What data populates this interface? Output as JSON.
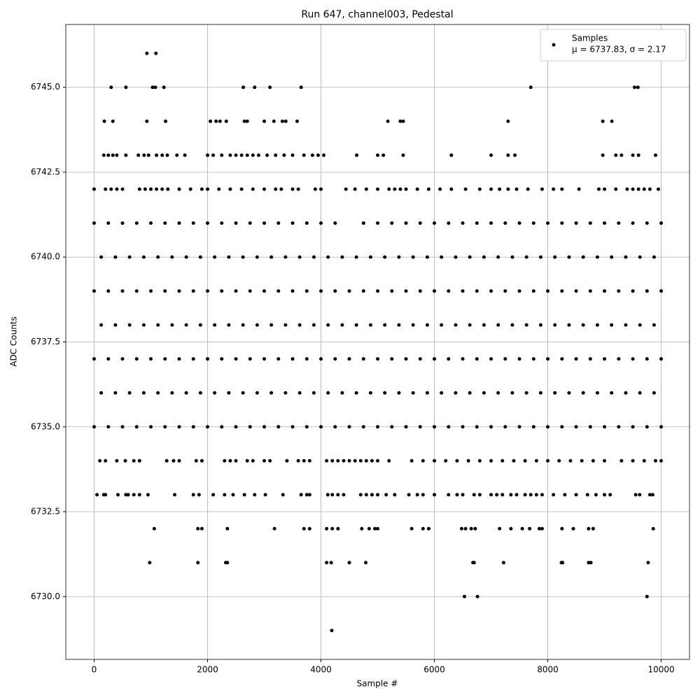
{
  "chart_data": {
    "type": "scatter",
    "title": "Run 647, channel003, Pedestal",
    "x_label": "Sample #",
    "y_label": "ADC Counts",
    "xlim": [
      -500,
      10499
    ],
    "ylim": [
      6728.15,
      6746.85
    ],
    "xticks": [
      0,
      2000,
      4000,
      6000,
      8000,
      10000
    ],
    "yticks": [
      {
        "value": 6730,
        "label": "6730.0"
      },
      {
        "value": 6732.5,
        "label": "6732.5"
      },
      {
        "value": 6735,
        "label": "6735.0"
      },
      {
        "value": 6737.5,
        "label": "6737.5"
      },
      {
        "value": 6740,
        "label": "6740.0"
      },
      {
        "value": 6742.5,
        "label": "6742.5"
      },
      {
        "value": 6745,
        "label": "6745.0"
      }
    ],
    "grid": true,
    "legend": "upper right",
    "legend_note": "μ = 6737.83, σ = 2.17",
    "series": [
      {
        "name": "Samples",
        "color": "#000000",
        "levels": [
          {
            "value": 6746,
            "x": [
              930,
              1090
            ]
          },
          {
            "value": 6745,
            "x": [
              300,
              560,
              1030,
              1080,
              1230,
              2630,
              2830,
              3100,
              3650,
              7700,
              9530,
              9590
            ]
          },
          {
            "value": 6744,
            "x": [
              180,
              330,
              930,
              1260,
              2050,
              2150,
              2220,
              2330,
              2650,
              2700,
              3000,
              3170,
              3320,
              3380,
              3580,
              5180,
              5400,
              5450,
              7300,
              8970,
              9130
            ]
          },
          {
            "value": 6743,
            "x": [
              170,
              250,
              330,
              400,
              560,
              780,
              880,
              960,
              1100,
              1200,
              1290,
              1460,
              1600,
              2000,
              2100,
              2250,
              2400,
              2500,
              2600,
              2700,
              2800,
              2900,
              3050,
              3200,
              3350,
              3500,
              3700,
              3850,
              3950,
              4050,
              4630,
              5000,
              5100,
              5450,
              6300,
              7000,
              7300,
              7420,
              8970,
              9200,
              9300,
              9500,
              9600,
              9900
            ]
          },
          {
            "value": 6742,
            "x": [
              0,
              200,
              300,
              400,
              500,
              800,
              900,
              1000,
              1100,
              1200,
              1300,
              1500,
              1700,
              1900,
              2000,
              2200,
              2400,
              2600,
              2800,
              3000,
              3200,
              3300,
              3500,
              3600,
              3900,
              4000,
              4440,
              4600,
              4800,
              5000,
              5200,
              5300,
              5400,
              5500,
              5700,
              5900,
              6100,
              6300,
              6550,
              6800,
              7000,
              7150,
              7300,
              7450,
              7650,
              7900,
              8100,
              8250,
              8550,
              8900,
              9000,
              9200,
              9400,
              9500,
              9600,
              9700,
              9800,
              9950
            ]
          },
          {
            "value": 6741,
            "x": [
              0,
              250,
              500,
              750,
              1000,
              1250,
              1500,
              1750,
              2000,
              2250,
              2500,
              2750,
              3000,
              3250,
              3500,
              3750,
              4000,
              4250,
              4750,
              5000,
              5250,
              5500,
              5750,
              6000,
              6250,
              6500,
              6750,
              7000,
              7250,
              7500,
              7750,
              8000,
              8250,
              8500,
              8750,
              9000,
              9250,
              9500,
              9750,
              10000
            ]
          },
          {
            "value": 6740,
            "x": [
              125,
              375,
              625,
              875,
              1125,
              1375,
              1625,
              1875,
              2125,
              2375,
              2625,
              2875,
              3125,
              3375,
              3625,
              3875,
              4125,
              4375,
              4625,
              4875,
              5125,
              5375,
              5625,
              5875,
              6125,
              6375,
              6625,
              6875,
              7125,
              7375,
              7625,
              7875,
              8125,
              8375,
              8625,
              8875,
              9125,
              9375,
              9625,
              9875
            ]
          },
          {
            "value": 6739,
            "x": [
              0,
              250,
              500,
              750,
              1000,
              1250,
              1500,
              1750,
              2000,
              2250,
              2500,
              2750,
              3000,
              3250,
              3500,
              3750,
              4000,
              4250,
              4500,
              4750,
              5000,
              5250,
              5500,
              5750,
              6000,
              6250,
              6500,
              6750,
              7000,
              7250,
              7500,
              7750,
              8000,
              8250,
              8500,
              8750,
              9000,
              9250,
              9500,
              9750,
              10000
            ]
          },
          {
            "value": 6738,
            "x": [
              125,
              375,
              625,
              875,
              1125,
              1375,
              1625,
              1875,
              2125,
              2375,
              2625,
              2875,
              3125,
              3375,
              3625,
              3875,
              4125,
              4375,
              4625,
              4875,
              5125,
              5375,
              5625,
              5875,
              6125,
              6375,
              6625,
              6875,
              7125,
              7375,
              7625,
              7875,
              8125,
              8375,
              8625,
              8875,
              9125,
              9375,
              9625,
              9875
            ]
          },
          {
            "value": 6737,
            "x": [
              0,
              250,
              500,
              750,
              1000,
              1250,
              1500,
              1750,
              2000,
              2250,
              2500,
              2750,
              3000,
              3250,
              3500,
              3750,
              4000,
              4250,
              4500,
              4750,
              5000,
              5250,
              5500,
              5750,
              6000,
              6250,
              6500,
              6750,
              7000,
              7250,
              7500,
              7750,
              8000,
              8250,
              8500,
              8750,
              9000,
              9250,
              9500,
              9750,
              10000
            ]
          },
          {
            "value": 6736,
            "x": [
              125,
              375,
              625,
              875,
              1125,
              1375,
              1625,
              1875,
              2125,
              2375,
              2625,
              2875,
              3125,
              3375,
              3625,
              3875,
              4125,
              4375,
              4625,
              4875,
              5125,
              5375,
              5625,
              5875,
              6125,
              6375,
              6625,
              6875,
              7125,
              7375,
              7625,
              7875,
              8125,
              8375,
              8625,
              8875,
              9125,
              9375,
              9625,
              9875
            ]
          },
          {
            "value": 6735,
            "x": [
              0,
              250,
              500,
              750,
              1000,
              1250,
              1500,
              1750,
              2000,
              2250,
              2500,
              2750,
              3000,
              3250,
              3500,
              3750,
              4000,
              4250,
              4500,
              4750,
              5000,
              5250,
              5500,
              5750,
              6000,
              6250,
              6500,
              6750,
              7000,
              7250,
              7500,
              7750,
              8000,
              8250,
              8500,
              8750,
              9000,
              9250,
              9500,
              9750,
              10000
            ]
          },
          {
            "value": 6734,
            "x": [
              100,
              200,
              400,
              550,
              700,
              800,
              1280,
              1400,
              1500,
              1800,
              1900,
              2300,
              2400,
              2500,
              2700,
              2800,
              3000,
              3100,
              3400,
              3600,
              3700,
              3800,
              4100,
              4200,
              4300,
              4400,
              4500,
              4600,
              4700,
              4800,
              4900,
              5000,
              5200,
              5600,
              5800,
              6000,
              6200,
              6400,
              6600,
              6800,
              7000,
              7200,
              7400,
              7600,
              7800,
              8000,
              8200,
              8400,
              8600,
              8800,
              9000,
              9300,
              9500,
              9700,
              9900,
              10000
            ]
          },
          {
            "value": 6733,
            "x": [
              50,
              170,
              200,
              420,
              560,
              600,
              700,
              800,
              950,
              1420,
              1750,
              1850,
              2100,
              2300,
              2450,
              2650,
              2830,
              3020,
              3330,
              3650,
              3750,
              3800,
              4120,
              4200,
              4300,
              4400,
              4700,
              4800,
              4900,
              5000,
              5150,
              5300,
              5550,
              5700,
              5800,
              6000,
              6250,
              6400,
              6500,
              6700,
              6800,
              7000,
              7100,
              7200,
              7350,
              7450,
              7600,
              7700,
              7800,
              7900,
              8100,
              8300,
              8500,
              8700,
              8850,
              9000,
              9100,
              9550,
              9620,
              9800,
              9850
            ]
          },
          {
            "value": 6732,
            "x": [
              1060,
              1830,
              1900,
              2350,
              3180,
              3700,
              3800,
              4100,
              4200,
              4300,
              4720,
              4850,
              4950,
              5000,
              5600,
              5800,
              5900,
              6480,
              6550,
              6650,
              6720,
              7150,
              7350,
              7550,
              7680,
              7850,
              7900,
              8250,
              8450,
              8720,
              8800,
              9860
            ]
          },
          {
            "value": 6731,
            "x": [
              980,
              1830,
              2320,
              2350,
              4100,
              4180,
              4500,
              4790,
              6680,
              6700,
              7220,
              8240,
              8260,
              8720,
              8760,
              9770
            ]
          },
          {
            "value": 6730,
            "x": [
              6530,
              6760,
              9750
            ]
          },
          {
            "value": 6729,
            "x": [
              4190
            ]
          }
        ]
      }
    ]
  }
}
